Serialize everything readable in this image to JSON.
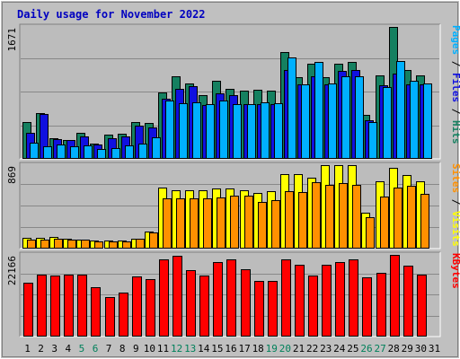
{
  "chart_data": {
    "type": "bar",
    "title": "Daily usage for November 2022",
    "categories": [
      "1",
      "2",
      "3",
      "4",
      "5",
      "6",
      "7",
      "8",
      "9",
      "10",
      "11",
      "12",
      "13",
      "14",
      "15",
      "16",
      "17",
      "18",
      "19",
      "20",
      "21",
      "22",
      "23",
      "24",
      "25",
      "26",
      "27",
      "28",
      "29",
      "30",
      "31"
    ],
    "weekend_days": [
      "5",
      "6",
      "12",
      "13",
      "19",
      "20",
      "26",
      "27"
    ],
    "colors": {
      "background": "#c0c0c0",
      "plot": "#bcbcbc",
      "title": "#0000c0",
      "weekend_label": "#00805a",
      "hits": "#158060",
      "files": "#1010e0",
      "pages": "#00b0ff",
      "visits": "#ffff00",
      "sites": "#ff9000",
      "kbytes": "#ff0000"
    },
    "panels": [
      {
        "id": "top",
        "ymax_label": "1671",
        "ylim": [
          0,
          1671
        ],
        "legend": [
          {
            "text": "Pages",
            "color": "#00b0ff"
          },
          {
            "text": " / ",
            "color": "#000000"
          },
          {
            "text": "Files",
            "color": "#1010e0"
          },
          {
            "text": " / ",
            "color": "#000000"
          },
          {
            "text": "Hits",
            "color": "#158060"
          }
        ],
        "series": [
          {
            "name": "Hits",
            "values": [
              468,
              584,
              264,
              242,
              335,
              198,
              302,
              320,
              468,
              457,
              841,
              1049,
              957,
              809,
              988,
              889,
              861,
              877,
              860,
              1355,
              1032,
              1208,
              1031,
              1202,
              1224,
              552,
              1053,
              1671,
              1124,
              1058,
              null
            ]
          },
          {
            "name": "Files",
            "values": [
              332,
              570,
              247,
              236,
              280,
              178,
              259,
              286,
              426,
              396,
              757,
              886,
              920,
              685,
              831,
              805,
              694,
              688,
              690,
              1129,
              940,
              1048,
              940,
              1110,
              1124,
              489,
              929,
              1078,
              946,
              940,
              null
            ]
          },
          {
            "name": "Pages",
            "values": [
              201,
              157,
              178,
              163,
              165,
              125,
              135,
              174,
              193,
              278,
              740,
              700,
              720,
              693,
              740,
              697,
              690,
              720,
              700,
              1287,
              940,
              1224,
              958,
              1047,
              1045,
              470,
              908,
              1241,
              985,
              955,
              null
            ]
          }
        ]
      },
      {
        "id": "middle",
        "ymax_label": "869",
        "ylim": [
          0,
          869
        ],
        "legend": [
          {
            "text": "Sites",
            "color": "#ff9000"
          },
          {
            "text": " / ",
            "color": "#000000"
          },
          {
            "text": "Visits",
            "color": "#ffff00"
          }
        ],
        "series": [
          {
            "name": "Visits",
            "values": [
              109,
              109,
              117,
              101,
              94,
              84,
              84,
              84,
              104,
              179,
              640,
              610,
              610,
              610,
              630,
              630,
              610,
              580,
              600,
              780,
              780,
              740,
              869,
              869,
              869,
              370,
              700,
              840,
              770,
              699,
              null
            ]
          },
          {
            "name": "Sites",
            "values": [
              89,
              89,
              104,
              94,
              89,
              78,
              76,
              78,
              99,
              169,
              520,
              520,
              520,
              520,
              530,
              550,
              550,
              490,
              500,
              600,
              590,
              690,
              660,
              680,
              660,
              330,
              540,
              640,
              650,
              570,
              null
            ]
          }
        ]
      },
      {
        "id": "bottom",
        "ymax_label": "22166",
        "ylim": [
          0,
          22166
        ],
        "legend": [
          {
            "text": "KBytes",
            "color": "#ff0000"
          }
        ],
        "series": [
          {
            "name": "KBytes",
            "values": [
              14600,
              16800,
              16600,
              16800,
              16900,
              13300,
              10600,
              11900,
              16200,
              15500,
              21000,
              22000,
              18000,
              16500,
              20200,
              20900,
              18200,
              15100,
              15000,
              21000,
              19400,
              16600,
              19500,
              20300,
              20900,
              16000,
              17300,
              22166,
              19300,
              16900,
              null
            ]
          }
        ]
      }
    ]
  }
}
